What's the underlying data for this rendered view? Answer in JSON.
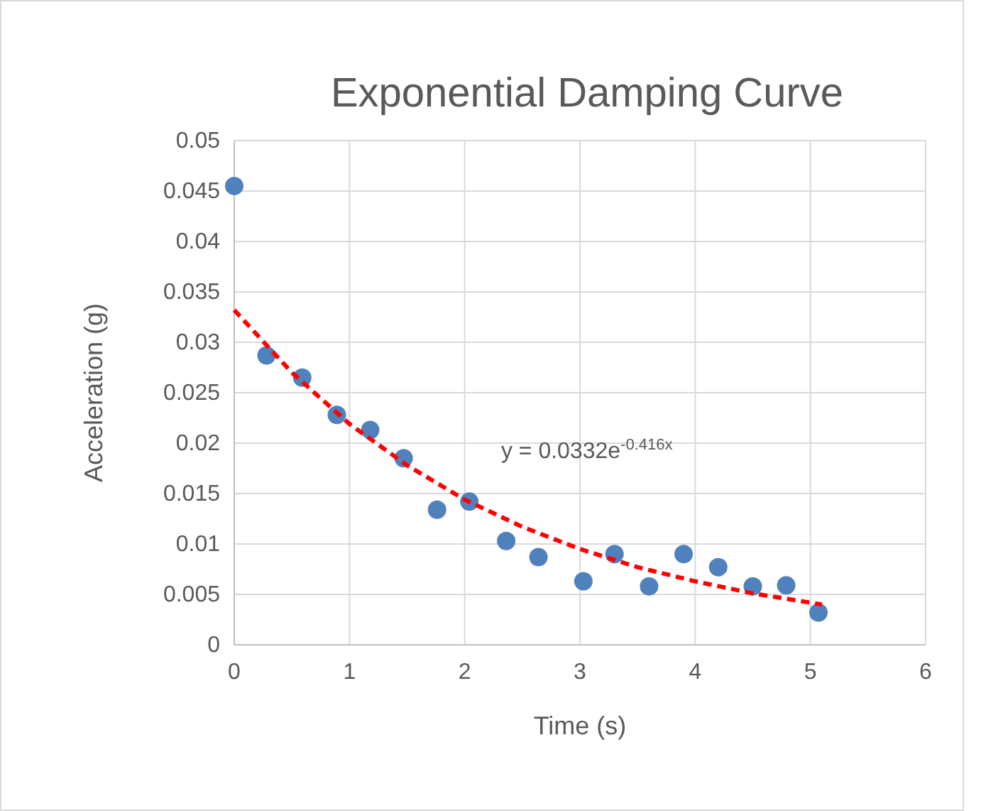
{
  "chart_data": {
    "type": "scatter",
    "title": "Exponential Damping Curve",
    "xlabel": "Time (s)",
    "ylabel": "Acceleration (g)",
    "xlim": [
      0,
      6
    ],
    "xticks": [
      0,
      1,
      2,
      3,
      4,
      5,
      6
    ],
    "ylim": [
      0,
      0.05
    ],
    "yticks": [
      0,
      0.005,
      0.01,
      0.015,
      0.02,
      0.025,
      0.03,
      0.035,
      0.04,
      0.045,
      0.05
    ],
    "grid": true,
    "marker": "circle",
    "series": [
      {
        "color": "#4f81bd",
        "x": [
          0,
          0.28,
          0.59,
          0.89,
          1.18,
          1.47,
          1.76,
          2.04,
          2.36,
          2.64,
          3.03,
          3.3,
          3.6,
          3.9,
          4.2,
          4.5,
          4.79,
          5.07
        ],
        "values": [
          0.0455,
          0.0287,
          0.0265,
          0.0228,
          0.0213,
          0.0185,
          0.0134,
          0.0142,
          0.0103,
          0.0087,
          0.0063,
          0.009,
          0.0058,
          0.009,
          0.0077,
          0.0058,
          0.0059,
          0.0032
        ]
      },
      {
        "type": "line",
        "color": "#ff0000",
        "line_style": "dashed",
        "marker": "none",
        "x": [
          0,
          0.5,
          1,
          1.5,
          2,
          2.5,
          3,
          3.5,
          4,
          4.5,
          5.1
        ],
        "values": [
          0.0332,
          0.027,
          0.0219,
          0.0178,
          0.0144,
          0.0117,
          0.0095,
          0.0077,
          0.0063,
          0.0051,
          0.004
        ]
      }
    ],
    "annotations": [
      "y = 0.0332e$^{-0.416x}$"
    ]
  }
}
